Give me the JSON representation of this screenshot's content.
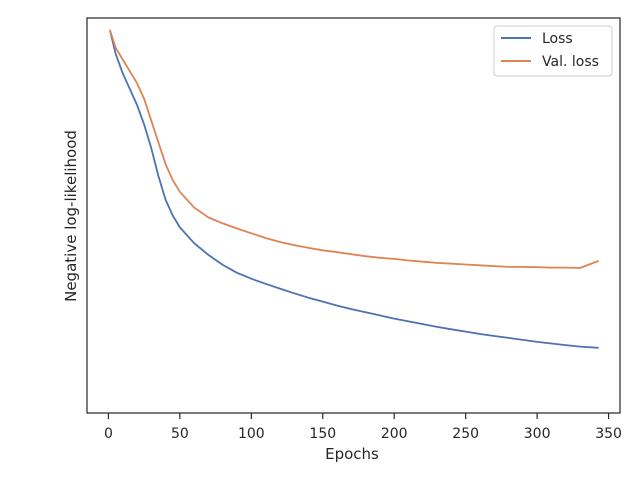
{
  "chart_data": {
    "type": "line",
    "title": "",
    "xlabel": "Epochs",
    "ylabel": "Negative log-likelihood",
    "xlim": [
      -15,
      358
    ],
    "ylim": [
      0,
      1
    ],
    "x_ticks": [
      "0",
      "50",
      "100",
      "150",
      "200",
      "250",
      "300",
      "350"
    ],
    "y_ticks_shown": false,
    "grid": false,
    "legend": "top-right",
    "series": [
      {
        "name": "Loss",
        "color": "#4c72b0",
        "x": [
          1,
          5,
          10,
          15,
          20,
          25,
          30,
          35,
          40,
          45,
          50,
          55,
          60,
          70,
          80,
          90,
          100,
          110,
          120,
          130,
          140,
          150,
          160,
          170,
          180,
          190,
          200,
          210,
          220,
          230,
          240,
          250,
          260,
          270,
          280,
          290,
          300,
          310,
          320,
          330,
          343
        ],
        "values": [
          0.97,
          0.91,
          0.86,
          0.82,
          0.78,
          0.73,
          0.67,
          0.6,
          0.54,
          0.5,
          0.47,
          0.45,
          0.43,
          0.4,
          0.375,
          0.355,
          0.34,
          0.327,
          0.315,
          0.303,
          0.292,
          0.282,
          0.272,
          0.263,
          0.255,
          0.247,
          0.239,
          0.232,
          0.225,
          0.218,
          0.212,
          0.206,
          0.2,
          0.195,
          0.19,
          0.185,
          0.18,
          0.176,
          0.172,
          0.168,
          0.165
        ]
      },
      {
        "name": "Val. loss",
        "color": "#dd8452",
        "x": [
          1,
          5,
          10,
          15,
          20,
          25,
          30,
          35,
          40,
          45,
          50,
          55,
          60,
          70,
          80,
          90,
          100,
          110,
          120,
          130,
          140,
          150,
          160,
          170,
          180,
          190,
          200,
          210,
          220,
          230,
          240,
          250,
          260,
          270,
          280,
          290,
          300,
          310,
          320,
          330,
          343
        ],
        "values": [
          0.97,
          0.925,
          0.895,
          0.865,
          0.835,
          0.795,
          0.74,
          0.685,
          0.63,
          0.59,
          0.56,
          0.54,
          0.52,
          0.495,
          0.48,
          0.467,
          0.455,
          0.443,
          0.433,
          0.425,
          0.418,
          0.412,
          0.407,
          0.402,
          0.397,
          0.393,
          0.39,
          0.386,
          0.383,
          0.38,
          0.378,
          0.376,
          0.374,
          0.372,
          0.37,
          0.37,
          0.369,
          0.368,
          0.368,
          0.367,
          0.385
        ]
      }
    ]
  }
}
